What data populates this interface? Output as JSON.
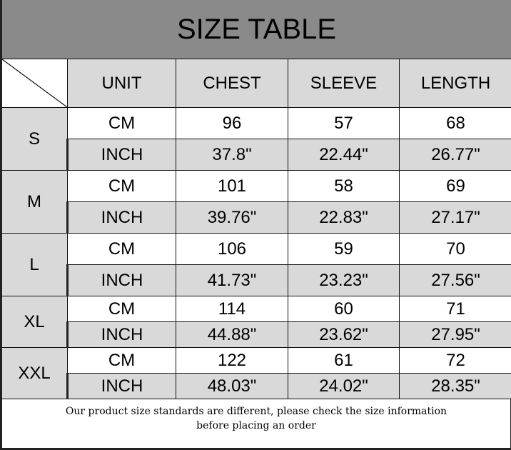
{
  "title": "SIZE TABLE",
  "headers": [
    "UNIT",
    "CHEST",
    "SLEEVE",
    "LENGTH"
  ],
  "rows": [
    {
      "size": "S",
      "cm": {
        "unit": "CM",
        "values": [
          "96",
          "57",
          "68"
        ]
      },
      "inch": {
        "unit": "INCH",
        "values": [
          "37.8\"",
          "22.44\"",
          "26.77\""
        ]
      }
    },
    {
      "size": "M",
      "cm": {
        "unit": "CM",
        "values": [
          "101",
          "58",
          "69"
        ]
      },
      "inch": {
        "unit": "INCH",
        "values": [
          "39.76\"",
          "22.83\"",
          "27.17\""
        ]
      }
    },
    {
      "size": "L",
      "cm": {
        "unit": "CM",
        "values": [
          "106",
          "59",
          "70"
        ]
      },
      "inch": {
        "unit": "INCH",
        "values": [
          "41.73\"",
          "23.23\"",
          "27.56\""
        ]
      }
    },
    {
      "size": "XL",
      "cm": {
        "unit": "CM",
        "values": [
          "114",
          "60",
          "71"
        ]
      },
      "inch": {
        "unit": "INCH",
        "values": [
          "44.88\"",
          "23.62\"",
          "27.95\""
        ]
      }
    },
    {
      "size": "XXL",
      "cm": {
        "unit": "CM",
        "values": [
          "122",
          "61",
          "72"
        ]
      },
      "inch": {
        "unit": "INCH",
        "values": [
          "48.03\"",
          "24.02\"",
          "28.35\""
        ]
      }
    }
  ],
  "footer": {
    "line1": "Our product size standards are different, please check the size information",
    "line2": "before placing an order"
  },
  "colors": {
    "title_bg": "#8a8a8a",
    "cell_gray": "#d9d9d9"
  }
}
